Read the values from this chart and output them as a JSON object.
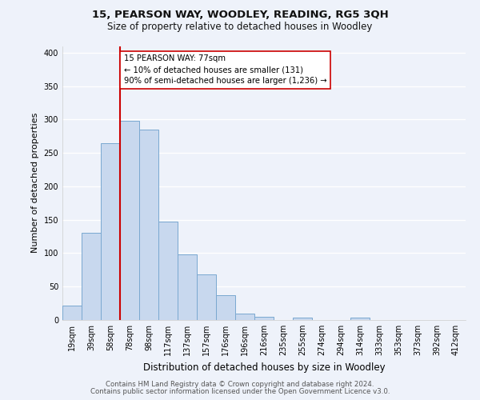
{
  "title": "15, PEARSON WAY, WOODLEY, READING, RG5 3QH",
  "subtitle": "Size of property relative to detached houses in Woodley",
  "xlabel": "Distribution of detached houses by size in Woodley",
  "ylabel": "Number of detached properties",
  "bar_labels": [
    "19sqm",
    "39sqm",
    "58sqm",
    "78sqm",
    "98sqm",
    "117sqm",
    "137sqm",
    "157sqm",
    "176sqm",
    "196sqm",
    "216sqm",
    "235sqm",
    "255sqm",
    "274sqm",
    "294sqm",
    "314sqm",
    "333sqm",
    "353sqm",
    "373sqm",
    "392sqm",
    "412sqm"
  ],
  "bar_heights": [
    22,
    130,
    265,
    298,
    285,
    147,
    98,
    68,
    37,
    9,
    5,
    0,
    3,
    0,
    0,
    3,
    0,
    0,
    0,
    0,
    0
  ],
  "bar_color": "#c8d8ee",
  "bar_edge_color": "#7aa8d0",
  "vline_x_index": 3,
  "vline_color": "#cc0000",
  "annotation_text": "15 PEARSON WAY: 77sqm\n← 10% of detached houses are smaller (131)\n90% of semi-detached houses are larger (1,236) →",
  "annotation_box_color": "white",
  "annotation_box_edge": "#cc0000",
  "ylim": [
    0,
    410
  ],
  "yticks": [
    0,
    50,
    100,
    150,
    200,
    250,
    300,
    350,
    400
  ],
  "footer1": "Contains HM Land Registry data © Crown copyright and database right 2024.",
  "footer2": "Contains public sector information licensed under the Open Government Licence v3.0.",
  "bg_color": "#eef2fa",
  "plot_bg_color": "#eef2fa",
  "grid_color": "#ffffff"
}
